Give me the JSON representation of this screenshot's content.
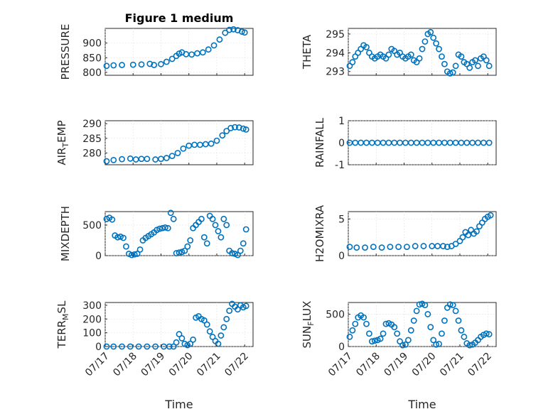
{
  "figure": {
    "xlabel_left": "Time",
    "xlabel_right": "Time",
    "title": "Figure 1 medium"
  },
  "colors": {
    "marker": "#0072bd"
  },
  "chart_data": [
    {
      "type": "scatter",
      "title": "Figure 1 medium",
      "ylabel": "PRESSURE",
      "ylim": [
        790,
        950
      ],
      "yticks": [
        800,
        850,
        900
      ],
      "yticklabels": [
        "800",
        "850",
        "900"
      ],
      "xlim": [
        0,
        5.3
      ],
      "xticklabels": [],
      "xlabel": "",
      "grid": true,
      "marker": "circle",
      "series": [
        {
          "x": [
            0.05,
            0.3,
            0.6,
            1.0,
            1.3,
            1.6,
            1.75,
            2.0,
            2.2,
            2.4,
            2.55,
            2.65,
            2.75,
            2.9,
            3.1,
            3.3,
            3.5,
            3.7,
            3.9,
            4.1,
            4.3,
            4.45,
            4.6,
            4.75,
            4.9,
            5.0
          ],
          "y": [
            822,
            824,
            825,
            826,
            827,
            829,
            825,
            828,
            836,
            846,
            856,
            864,
            868,
            862,
            861,
            865,
            868,
            878,
            892,
            912,
            935,
            945,
            947,
            944,
            939,
            936
          ]
        }
      ]
    },
    {
      "type": "scatter",
      "ylabel": "THETA",
      "ylim": [
        292.8,
        295.3
      ],
      "yticks": [
        293,
        294,
        295
      ],
      "yticklabels": [
        "293",
        "294",
        "295"
      ],
      "xlim": [
        0,
        5.3
      ],
      "xticklabels": [],
      "xlabel": "",
      "grid": true,
      "marker": "circle",
      "series": [
        {
          "x": [
            0.05,
            0.15,
            0.25,
            0.35,
            0.45,
            0.55,
            0.65,
            0.75,
            0.85,
            0.95,
            1.05,
            1.15,
            1.25,
            1.35,
            1.45,
            1.55,
            1.65,
            1.75,
            1.85,
            1.95,
            2.05,
            2.15,
            2.25,
            2.35,
            2.45,
            2.55,
            2.65,
            2.75,
            2.85,
            2.95,
            3.05,
            3.15,
            3.25,
            3.35,
            3.45,
            3.55,
            3.65,
            3.75,
            3.85,
            3.95,
            4.05,
            4.15,
            4.25,
            4.35,
            4.45,
            4.55,
            4.65,
            4.75,
            4.85,
            4.95,
            5.05
          ],
          "y": [
            293.3,
            293.5,
            293.8,
            294.0,
            294.2,
            294.4,
            294.3,
            294.0,
            293.8,
            293.7,
            293.8,
            293.9,
            293.8,
            293.7,
            293.9,
            294.2,
            294.1,
            293.9,
            294.0,
            293.8,
            293.7,
            293.8,
            293.9,
            293.6,
            293.5,
            293.7,
            294.2,
            294.6,
            295.0,
            295.1,
            294.8,
            294.5,
            294.2,
            293.8,
            293.4,
            293.0,
            292.9,
            292.95,
            293.3,
            293.9,
            293.8,
            293.5,
            293.4,
            293.2,
            293.5,
            293.6,
            293.3,
            293.7,
            293.8,
            293.6,
            293.3
          ]
        }
      ]
    },
    {
      "type": "scatter",
      "ylabel": "AIR_TEMP",
      "ylim": [
        276,
        291
      ],
      "yticks": [
        280,
        285,
        290
      ],
      "yticklabels": [
        "280",
        "285",
        "290"
      ],
      "xlim": [
        0,
        5.3
      ],
      "xticklabels": [],
      "xlabel": "",
      "grid": true,
      "marker": "circle",
      "series": [
        {
          "x": [
            0.05,
            0.3,
            0.6,
            0.9,
            1.1,
            1.3,
            1.5,
            1.8,
            2.0,
            2.2,
            2.4,
            2.6,
            2.8,
            3.0,
            3.2,
            3.4,
            3.6,
            3.8,
            4.0,
            4.2,
            4.35,
            4.5,
            4.65,
            4.8,
            4.95,
            5.05
          ],
          "y": [
            277.2,
            277.6,
            277.9,
            278.1,
            277.8,
            278.0,
            278.0,
            277.8,
            278.0,
            278.3,
            279.0,
            280.0,
            281.5,
            282.5,
            282.8,
            282.8,
            283.0,
            283.2,
            284.2,
            286.0,
            287.5,
            288.5,
            288.8,
            288.7,
            288.3,
            288.0
          ]
        }
      ]
    },
    {
      "type": "scatter",
      "ylabel": "RAINFALL",
      "ylim": [
        -1,
        1
      ],
      "yticks": [
        -1,
        0,
        1
      ],
      "yticklabels": [
        "-1",
        "0",
        "1"
      ],
      "xlim": [
        0,
        5.3
      ],
      "xticklabels": [],
      "xlabel": "",
      "grid": true,
      "marker": "circle",
      "series": [
        {
          "x": [
            0.05,
            0.25,
            0.45,
            0.65,
            0.85,
            1.05,
            1.25,
            1.45,
            1.65,
            1.85,
            2.05,
            2.25,
            2.45,
            2.65,
            2.85,
            3.05,
            3.25,
            3.45,
            3.65,
            3.85,
            4.05,
            4.25,
            4.45,
            4.65,
            4.85,
            5.05
          ],
          "y": [
            0,
            0,
            0,
            0,
            0,
            0,
            0,
            0,
            0,
            0,
            0,
            0,
            0,
            0,
            0,
            0,
            0,
            0,
            0,
            0,
            0,
            0,
            0,
            0,
            0,
            0
          ]
        }
      ]
    },
    {
      "type": "scatter",
      "ylabel": "MIXDEPTH",
      "ylim": [
        0,
        720
      ],
      "yticks": [
        0,
        500
      ],
      "yticklabels": [
        "0",
        "500"
      ],
      "xlim": [
        0,
        5.3
      ],
      "xticklabels": [],
      "xlabel": "",
      "grid": true,
      "marker": "circle",
      "series": [
        {
          "x": [
            0.05,
            0.15,
            0.25,
            0.35,
            0.45,
            0.55,
            0.65,
            0.75,
            0.85,
            0.95,
            1.05,
            1.15,
            1.25,
            1.35,
            1.45,
            1.55,
            1.65,
            1.75,
            1.85,
            1.95,
            2.05,
            2.15,
            2.25,
            2.35,
            2.45,
            2.55,
            2.65,
            2.75,
            2.85,
            2.95,
            3.05,
            3.15,
            3.25,
            3.35,
            3.45,
            3.55,
            3.65,
            3.75,
            3.85,
            3.95,
            4.05,
            4.15,
            4.25,
            4.35,
            4.45,
            4.55,
            4.65,
            4.75,
            4.85,
            4.95,
            5.05
          ],
          "y": [
            600,
            620,
            590,
            330,
            300,
            310,
            290,
            150,
            30,
            10,
            20,
            30,
            100,
            250,
            290,
            320,
            350,
            380,
            420,
            440,
            450,
            460,
            450,
            700,
            600,
            40,
            50,
            60,
            80,
            150,
            250,
            450,
            500,
            550,
            600,
            300,
            200,
            650,
            600,
            500,
            400,
            300,
            600,
            500,
            80,
            40,
            30,
            10,
            80,
            200,
            430
          ]
        }
      ]
    },
    {
      "type": "scatter",
      "ylabel": "H2OMIXRA",
      "ylim": [
        0,
        6
      ],
      "yticks": [
        0,
        5
      ],
      "yticklabels": [
        "0",
        "5"
      ],
      "xlim": [
        0,
        5.3
      ],
      "xticklabels": [],
      "xlabel": "",
      "grid": true,
      "marker": "circle",
      "series": [
        {
          "x": [
            0.05,
            0.3,
            0.6,
            0.9,
            1.2,
            1.5,
            1.8,
            2.1,
            2.4,
            2.7,
            3.0,
            3.2,
            3.4,
            3.55,
            3.7,
            3.85,
            4.0,
            4.1,
            4.2,
            4.3,
            4.4,
            4.5,
            4.6,
            4.7,
            4.8,
            4.9,
            5.0,
            5.1
          ],
          "y": [
            1.2,
            1.1,
            1.1,
            1.2,
            1.1,
            1.2,
            1.2,
            1.2,
            1.3,
            1.3,
            1.3,
            1.3,
            1.3,
            1.2,
            1.3,
            1.6,
            2.0,
            2.5,
            3.2,
            2.8,
            3.5,
            3.0,
            3.3,
            4.0,
            4.5,
            5.0,
            5.3,
            5.5
          ]
        }
      ]
    },
    {
      "type": "scatter",
      "ylabel": "TERR_MSL",
      "ylim": [
        0,
        320
      ],
      "yticks": [
        0,
        100,
        200,
        300
      ],
      "yticklabels": [
        "0",
        "100",
        "200",
        "300"
      ],
      "xlim": [
        0,
        5.3
      ],
      "xticklabels": [
        "07/17",
        "07/18",
        "07/19",
        "07/20",
        "07/21",
        "07/22"
      ],
      "xlabel": "Time",
      "grid": true,
      "marker": "circle",
      "series": [
        {
          "x": [
            0.05,
            0.3,
            0.6,
            0.9,
            1.2,
            1.5,
            1.8,
            2.1,
            2.3,
            2.45,
            2.55,
            2.65,
            2.75,
            2.85,
            2.95,
            3.05,
            3.15,
            3.25,
            3.35,
            3.45,
            3.55,
            3.65,
            3.75,
            3.85,
            3.95,
            4.05,
            4.15,
            4.25,
            4.35,
            4.45,
            4.55,
            4.65,
            4.75,
            4.85,
            4.95,
            5.05
          ],
          "y": [
            0,
            0,
            0,
            0,
            0,
            0,
            0,
            0,
            0,
            0,
            30,
            90,
            60,
            20,
            10,
            20,
            50,
            210,
            220,
            200,
            190,
            160,
            110,
            70,
            40,
            20,
            80,
            140,
            200,
            260,
            310,
            290,
            270,
            300,
            285,
            295
          ]
        }
      ]
    },
    {
      "type": "scatter",
      "ylabel": "SUN_FLUX",
      "ylim": [
        0,
        680
      ],
      "yticks": [
        0,
        500
      ],
      "yticklabels": [
        "0",
        "500"
      ],
      "xlim": [
        0,
        5.3
      ],
      "xticklabels": [
        "07/17",
        "07/18",
        "07/19",
        "07/20",
        "07/21",
        "07/22"
      ],
      "xlabel": "Time",
      "grid": true,
      "marker": "circle",
      "series": [
        {
          "x": [
            0.05,
            0.15,
            0.25,
            0.35,
            0.45,
            0.55,
            0.65,
            0.75,
            0.85,
            0.95,
            1.05,
            1.15,
            1.25,
            1.35,
            1.45,
            1.55,
            1.65,
            1.75,
            1.85,
            1.95,
            2.05,
            2.15,
            2.25,
            2.35,
            2.45,
            2.55,
            2.65,
            2.75,
            2.85,
            2.95,
            3.05,
            3.15,
            3.25,
            3.35,
            3.45,
            3.55,
            3.65,
            3.75,
            3.85,
            3.95,
            4.05,
            4.15,
            4.25,
            4.35,
            4.45,
            4.55,
            4.65,
            4.75,
            4.85,
            4.95,
            5.05
          ],
          "y": [
            150,
            250,
            350,
            450,
            480,
            450,
            350,
            200,
            80,
            90,
            100,
            120,
            200,
            350,
            360,
            340,
            300,
            200,
            80,
            20,
            30,
            100,
            250,
            400,
            550,
            650,
            660,
            640,
            500,
            300,
            100,
            30,
            40,
            200,
            400,
            600,
            650,
            640,
            550,
            400,
            250,
            150,
            50,
            20,
            30,
            60,
            100,
            150,
            180,
            200,
            190
          ]
        }
      ]
    }
  ]
}
